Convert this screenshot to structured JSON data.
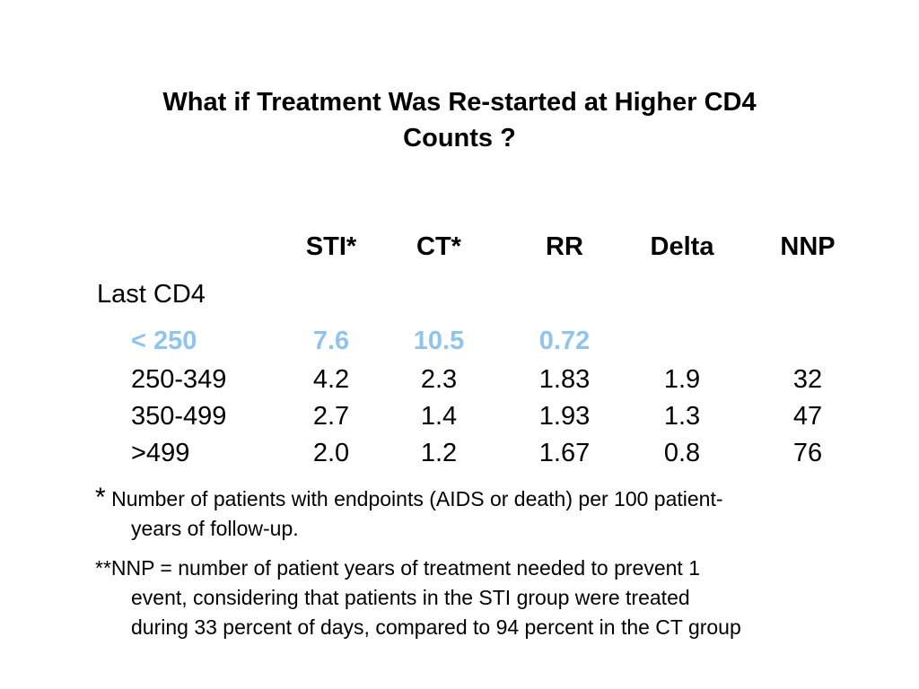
{
  "title": {
    "line1": "What if Treatment Was Re-started at Higher CD4",
    "line2": "Counts ?"
  },
  "table": {
    "headers": {
      "sti": "STI*",
      "ct": "CT*",
      "rr": "RR",
      "delta": "Delta",
      "nnp": "NNP"
    },
    "row_group_label": "Last CD4",
    "rows": [
      {
        "cd4": "< 250",
        "sti": "7.6",
        "ct": "10.5",
        "rr": "0.72",
        "delta": "",
        "nnp": "",
        "highlight": true
      },
      {
        "cd4": "250-349",
        "sti": "4.2",
        "ct": "2.3",
        "rr": "1.83",
        "delta": "1.9",
        "nnp": "32",
        "highlight": false
      },
      {
        "cd4": "350-499",
        "sti": "2.7",
        "ct": "1.4",
        "rr": "1.93",
        "delta": "1.3",
        "nnp": "47",
        "highlight": false
      },
      {
        "cd4": ">499",
        "sti": "2.0",
        "ct": "1.2",
        "rr": "1.67",
        "delta": "0.8",
        "nnp": "76",
        "highlight": false
      }
    ],
    "highlight_color": "#8fc4f0"
  },
  "footnotes": {
    "star_mark": "*",
    "star_line1": " Number of patients with endpoints (AIDS or death) per 100 patient-",
    "star_line2": "years of follow-up.",
    "nnp_line1": "**NNP = number of patient years of treatment needed to prevent 1",
    "nnp_line2": "event, considering that patients in the STI group were treated",
    "nnp_line3": "during 33 percent of days, compared to 94 percent in the CT group"
  }
}
